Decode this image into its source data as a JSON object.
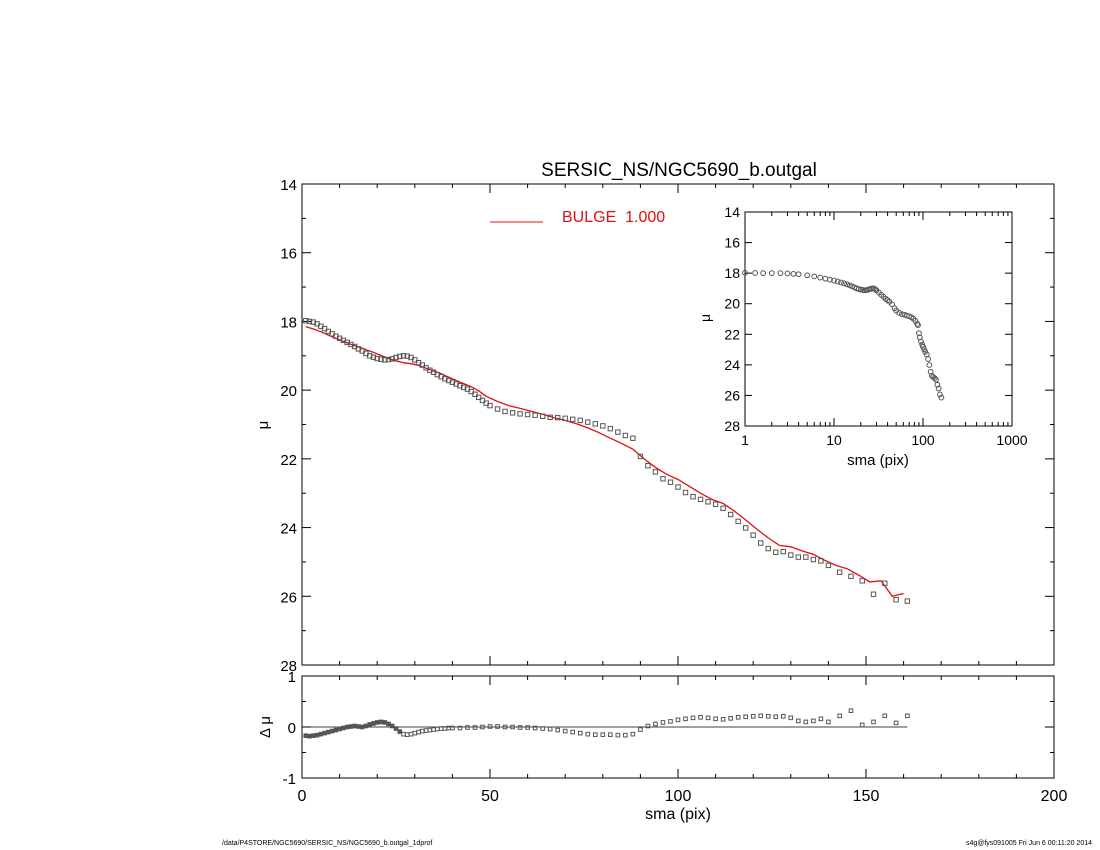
{
  "chart_data": [
    {
      "type": "scatter",
      "panel": "main",
      "title": "SERSIC_NS/NGC5690_b.outgal",
      "xlabel": "",
      "ylabel": "μ",
      "xlim": [
        0,
        200
      ],
      "ylim": [
        28,
        14
      ],
      "xticks": [
        "0",
        "50",
        "100",
        "150",
        "200"
      ],
      "yticks": [
        "14",
        "16",
        "18",
        "20",
        "22",
        "24",
        "26",
        "28"
      ],
      "legend": {
        "position": "top",
        "label": "BULGE  1.000"
      },
      "series": [
        {
          "kind": "data",
          "marker": "open-square",
          "color": "#555555",
          "x": [
            1,
            2,
            3,
            4,
            5,
            6,
            7,
            8,
            9,
            10,
            11,
            12,
            13,
            14,
            15,
            16,
            17,
            18,
            19,
            20,
            21,
            22,
            23,
            24,
            25,
            26,
            27,
            28,
            29,
            30,
            31,
            32,
            33,
            34,
            35,
            36,
            37,
            38,
            39,
            40,
            41,
            42,
            43,
            44,
            45,
            46,
            47,
            48,
            49,
            50,
            52,
            54,
            56,
            58,
            60,
            62,
            64,
            66,
            68,
            70,
            72,
            74,
            76,
            78,
            80,
            82,
            84,
            86,
            88,
            90,
            92,
            94,
            96,
            98,
            100,
            102,
            104,
            106,
            108,
            110,
            112,
            114,
            116,
            118,
            120,
            122,
            124,
            126,
            128,
            130,
            132,
            134,
            136,
            138,
            140,
            143,
            146,
            149,
            152,
            155,
            158,
            161
          ],
          "y": [
            17.98,
            18.0,
            18.02,
            18.07,
            18.14,
            18.21,
            18.29,
            18.36,
            18.43,
            18.49,
            18.55,
            18.61,
            18.67,
            18.73,
            18.8,
            18.86,
            18.93,
            19.0,
            19.04,
            19.08,
            19.1,
            19.12,
            19.11,
            19.09,
            19.05,
            19.02,
            19.0,
            19.01,
            19.05,
            19.12,
            19.2,
            19.27,
            19.35,
            19.42,
            19.48,
            19.55,
            19.61,
            19.67,
            19.72,
            19.77,
            19.82,
            19.87,
            19.92,
            19.97,
            20.04,
            20.12,
            20.21,
            20.3,
            20.38,
            20.45,
            20.55,
            20.62,
            20.66,
            20.69,
            20.71,
            20.73,
            20.76,
            20.79,
            20.8,
            20.82,
            20.85,
            20.88,
            20.93,
            20.98,
            21.04,
            21.12,
            21.22,
            21.32,
            21.4,
            21.93,
            22.2,
            22.38,
            22.58,
            22.68,
            22.82,
            22.98,
            23.1,
            23.18,
            23.25,
            23.32,
            23.44,
            23.62,
            23.82,
            24.01,
            24.22,
            24.45,
            24.61,
            24.72,
            24.7,
            24.8,
            24.86,
            24.86,
            24.93,
            24.97,
            25.1,
            25.3,
            25.42,
            25.55,
            25.94,
            25.62,
            26.1,
            26.14
          ]
        },
        {
          "kind": "model",
          "name": "BULGE  1.000",
          "color": "#e01010",
          "x": [
            1,
            3,
            5,
            7,
            9,
            11,
            13,
            15,
            17,
            19,
            21,
            23,
            25,
            27,
            29,
            31,
            33,
            35,
            37,
            39,
            41,
            43,
            45,
            47,
            49,
            52,
            55,
            58,
            61,
            64,
            67,
            70,
            73,
            76,
            79,
            82,
            85,
            88,
            91,
            94,
            97,
            100,
            103,
            106,
            109,
            112,
            115,
            118,
            121,
            124,
            127,
            130,
            133,
            136,
            139,
            142,
            145,
            148,
            151,
            154,
            157,
            160
          ],
          "y": [
            18.15,
            18.22,
            18.3,
            18.4,
            18.49,
            18.58,
            18.67,
            18.74,
            18.82,
            18.9,
            18.99,
            19.08,
            19.15,
            19.2,
            19.23,
            19.28,
            19.36,
            19.44,
            19.52,
            19.62,
            19.72,
            19.81,
            19.9,
            20.02,
            20.18,
            20.33,
            20.45,
            20.53,
            20.62,
            20.7,
            20.8,
            20.88,
            20.98,
            21.1,
            21.24,
            21.4,
            21.55,
            21.72,
            22.0,
            22.25,
            22.45,
            22.6,
            22.8,
            23.0,
            23.18,
            23.3,
            23.52,
            23.78,
            24.05,
            24.3,
            24.52,
            24.56,
            24.68,
            24.78,
            24.95,
            25.1,
            25.2,
            25.38,
            25.58,
            25.55,
            26.0,
            25.92
          ]
        }
      ]
    },
    {
      "type": "scatter",
      "panel": "inset",
      "title": "",
      "xlabel": "sma (pix)",
      "ylabel": "μ",
      "xscale": "log",
      "xlim": [
        1,
        1000
      ],
      "ylim": [
        28,
        14
      ],
      "xticks": [
        "1",
        "10",
        "100",
        "1000"
      ],
      "yticks": [
        "14",
        "16",
        "18",
        "20",
        "22",
        "24",
        "26",
        "28"
      ],
      "series": [
        {
          "kind": "data",
          "color": "#555555",
          "x": [
            1,
            1.3,
            1.6,
            2,
            2.5,
            3,
            3.5,
            4,
            5,
            6,
            7,
            8,
            9,
            10,
            11,
            12,
            13,
            14,
            15,
            16,
            17,
            18,
            19,
            20,
            21,
            22,
            23,
            24,
            25,
            26,
            27,
            28,
            29,
            30,
            32,
            34,
            36,
            38,
            40,
            42,
            45,
            48,
            50,
            54,
            58,
            62,
            66,
            70,
            74,
            78,
            82,
            86,
            88,
            90,
            92,
            95,
            98,
            100,
            103,
            106,
            110,
            114,
            118,
            122,
            126,
            130,
            135,
            140,
            145,
            150,
            155,
            161
          ],
          "y": [
            17.98,
            17.99,
            18.0,
            18.0,
            18.0,
            18.02,
            18.05,
            18.07,
            18.14,
            18.21,
            18.29,
            18.36,
            18.43,
            18.49,
            18.55,
            18.61,
            18.67,
            18.73,
            18.8,
            18.86,
            18.93,
            19.0,
            19.04,
            19.08,
            19.1,
            19.12,
            19.11,
            19.09,
            19.05,
            19.02,
            19.0,
            19.01,
            19.05,
            19.12,
            19.27,
            19.42,
            19.55,
            19.67,
            19.77,
            19.87,
            20.04,
            20.3,
            20.45,
            20.6,
            20.68,
            20.72,
            20.78,
            20.82,
            20.88,
            20.98,
            21.12,
            21.32,
            21.4,
            21.93,
            22.2,
            22.48,
            22.68,
            22.82,
            22.98,
            23.15,
            23.32,
            23.62,
            24.01,
            24.45,
            24.72,
            24.8,
            24.86,
            24.97,
            25.3,
            25.55,
            25.94,
            26.14
          ]
        }
      ]
    },
    {
      "type": "scatter",
      "panel": "residual",
      "title": "",
      "xlabel": "sma (pix)",
      "ylabel": "Δ μ",
      "xlim": [
        0,
        200
      ],
      "ylim": [
        -1,
        1
      ],
      "xticks": [
        "0",
        "50",
        "100",
        "150",
        "200"
      ],
      "yticks": [
        "-1",
        "0",
        "1"
      ],
      "series": [
        {
          "kind": "residual",
          "color": "#555555",
          "x": [
            1,
            2,
            3,
            4,
            5,
            6,
            7,
            8,
            9,
            10,
            11,
            12,
            13,
            14,
            15,
            16,
            17,
            18,
            19,
            20,
            21,
            22,
            23,
            24,
            25,
            26,
            27,
            28,
            29,
            30,
            31,
            32,
            33,
            34,
            35,
            36,
            37,
            38,
            39,
            40,
            42,
            44,
            46,
            48,
            50,
            52,
            54,
            56,
            58,
            60,
            62,
            64,
            66,
            68,
            70,
            72,
            74,
            76,
            78,
            80,
            82,
            84,
            86,
            88,
            90,
            92,
            94,
            96,
            98,
            100,
            102,
            104,
            106,
            108,
            110,
            112,
            114,
            116,
            118,
            120,
            122,
            124,
            126,
            128,
            130,
            132,
            134,
            136,
            138,
            140,
            143,
            146,
            149,
            152,
            155,
            158,
            161
          ],
          "y": [
            -0.17,
            -0.18,
            -0.17,
            -0.16,
            -0.14,
            -0.12,
            -0.1,
            -0.08,
            -0.06,
            -0.04,
            -0.02,
            0.0,
            0.01,
            0.02,
            0.01,
            0.0,
            0.02,
            0.05,
            0.07,
            0.09,
            0.1,
            0.09,
            0.06,
            0.02,
            -0.03,
            -0.09,
            -0.14,
            -0.15,
            -0.14,
            -0.12,
            -0.1,
            -0.08,
            -0.07,
            -0.06,
            -0.05,
            -0.04,
            -0.03,
            -0.03,
            -0.02,
            -0.02,
            -0.02,
            -0.01,
            -0.01,
            0.0,
            0.01,
            0.01,
            0.0,
            0.0,
            -0.01,
            -0.01,
            -0.02,
            -0.03,
            -0.04,
            -0.06,
            -0.08,
            -0.1,
            -0.12,
            -0.14,
            -0.15,
            -0.15,
            -0.15,
            -0.16,
            -0.16,
            -0.14,
            -0.05,
            0.02,
            0.06,
            0.09,
            0.11,
            0.14,
            0.16,
            0.18,
            0.19,
            0.18,
            0.16,
            0.15,
            0.17,
            0.19,
            0.2,
            0.21,
            0.22,
            0.21,
            0.2,
            0.21,
            0.18,
            0.12,
            0.1,
            0.12,
            0.16,
            0.1,
            0.22,
            0.32,
            0.04,
            0.1,
            0.22,
            0.08,
            0.22
          ]
        }
      ]
    }
  ],
  "footer": {
    "left": "/data/P4STORE/NGC5690/SERSIC_NS/NGC5690_b.outgal_1dprof",
    "right": "s4g@fys091005  Fri Jun  6 00:11:20 2014"
  }
}
